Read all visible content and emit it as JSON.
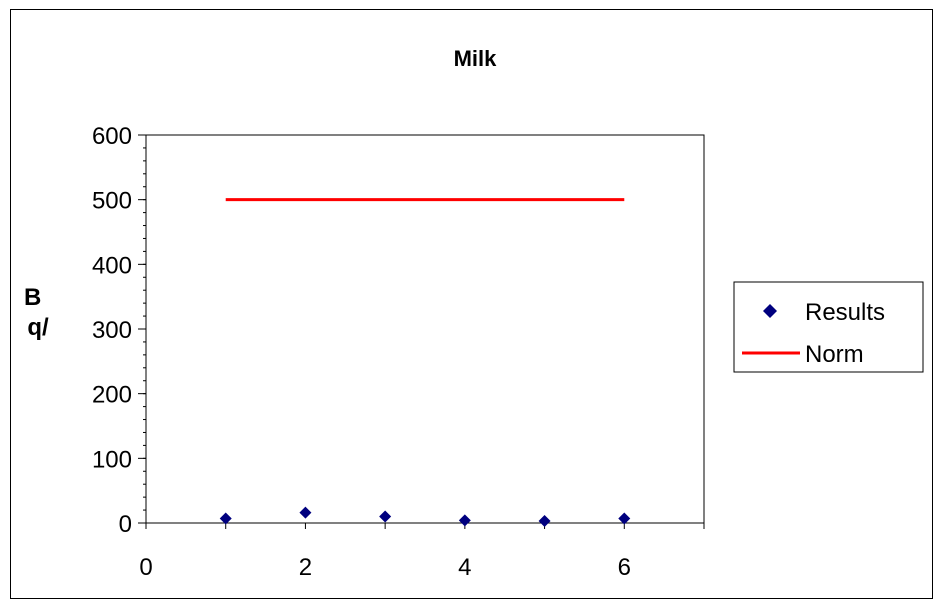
{
  "chart_data": {
    "type": "scatter",
    "title": "Milk",
    "xlabel": "",
    "ylabel": "Bq/",
    "xlim": [
      0,
      7
    ],
    "ylim": [
      0,
      600
    ],
    "x_ticks": [
      0,
      2,
      4,
      6
    ],
    "y_ticks": [
      0,
      100,
      200,
      300,
      400,
      500,
      600
    ],
    "grid": false,
    "legend_position": "right",
    "series": [
      {
        "name": "Results",
        "kind": "scatter",
        "marker": "diamond",
        "color": "#00007F",
        "points": [
          [
            1,
            7
          ],
          [
            2,
            16
          ],
          [
            3,
            10
          ],
          [
            4,
            4
          ],
          [
            5,
            3
          ],
          [
            6,
            7
          ]
        ]
      },
      {
        "name": "Norm",
        "kind": "line",
        "color": "#FF0000",
        "points": [
          [
            1,
            500
          ],
          [
            6,
            500
          ]
        ]
      }
    ]
  }
}
